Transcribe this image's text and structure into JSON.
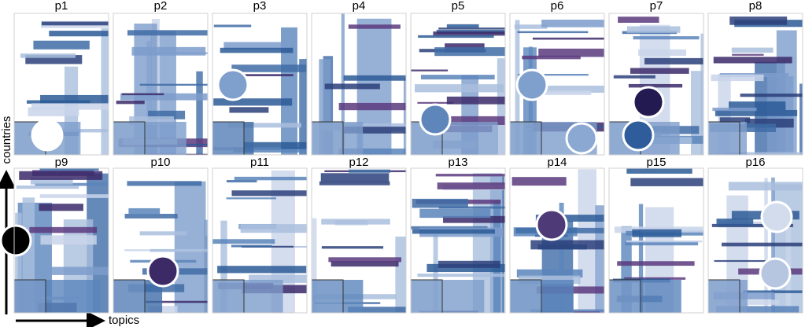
{
  "panels": [
    {
      "label": "p1"
    },
    {
      "label": "p2"
    },
    {
      "label": "p3"
    },
    {
      "label": "p4"
    },
    {
      "label": "p5"
    },
    {
      "label": "p6"
    },
    {
      "label": "p7"
    },
    {
      "label": "p8"
    },
    {
      "label": "p9"
    },
    {
      "label": "p10"
    },
    {
      "label": "p11"
    },
    {
      "label": "p12"
    },
    {
      "label": "p13"
    },
    {
      "label": "p14"
    },
    {
      "label": "p15"
    },
    {
      "label": "p16"
    }
  ],
  "axes": {
    "y_label": "countries",
    "x_label": "topics"
  }
}
